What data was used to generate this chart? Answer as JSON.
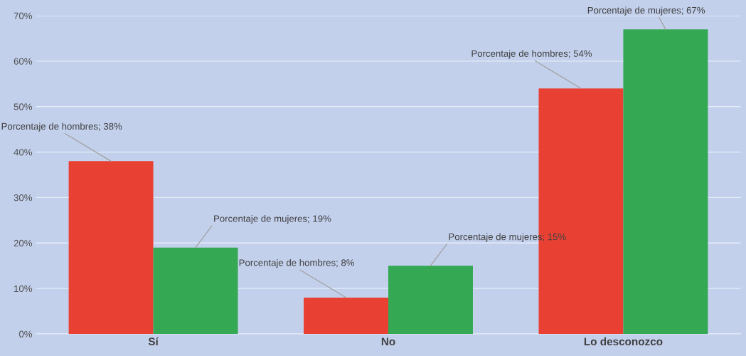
{
  "chart_data": {
    "type": "bar",
    "categories": [
      "Sí",
      "No",
      "Lo desconozco"
    ],
    "series": [
      {
        "color": "#e84134",
        "values": [
          38,
          8,
          54
        ],
        "value_labels": [
          "Porcentaje de hombres; 38%",
          "Porcentaje de hombres; 8%",
          "Porcentaje de hombres; 54%"
        ]
      },
      {
        "color": "#34a853",
        "values": [
          19,
          15,
          67
        ],
        "value_labels": [
          "Porcentaje de mujeres; 19%",
          "Porcentaje de mujeres; 15%",
          "Porcentaje de mujeres; 67%"
        ]
      }
    ],
    "ylim": [
      0,
      70
    ],
    "yticks": [
      {
        "value": 0,
        "label": "0%"
      },
      {
        "value": 10,
        "label": "10%"
      },
      {
        "value": 20,
        "label": "20%"
      },
      {
        "value": 30,
        "label": "30%"
      },
      {
        "value": 40,
        "label": "40%"
      },
      {
        "value": 50,
        "label": "50%"
      },
      {
        "value": 60,
        "label": "60%"
      },
      {
        "value": 70,
        "label": "70%"
      }
    ],
    "grid": "y",
    "legend": false
  }
}
